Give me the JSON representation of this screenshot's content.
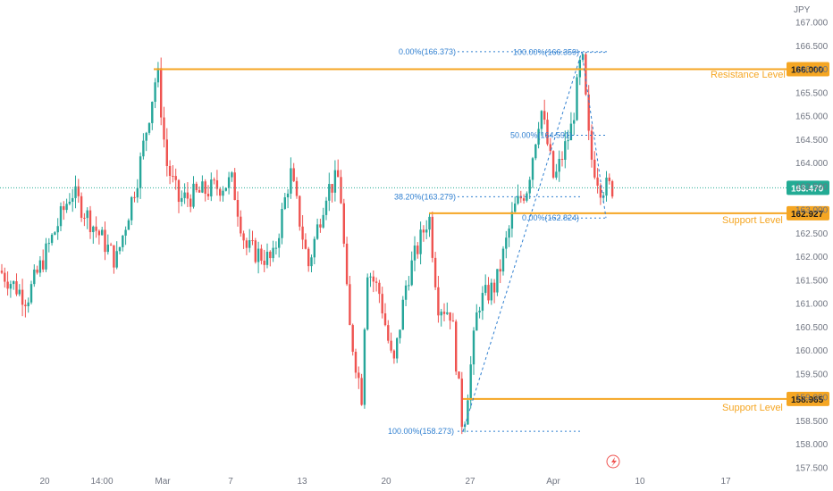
{
  "chart_data": {
    "type": "candlestick",
    "currency": "JPY",
    "ylim": [
      157.5,
      167.0
    ],
    "y_ticks": [
      "157.500",
      "158.000",
      "158.500",
      "159.000",
      "159.500",
      "160.000",
      "160.500",
      "161.000",
      "161.500",
      "162.000",
      "162.500",
      "163.000",
      "163.500",
      "164.000",
      "164.500",
      "165.000",
      "165.500",
      "166.000",
      "166.500",
      "167.000"
    ],
    "x_ticks": [
      "20",
      "14:00",
      "Mar",
      "7",
      "13",
      "20",
      "27",
      "Apr",
      "10",
      "17"
    ],
    "current_price": {
      "label": "163.470",
      "value": 163.47
    },
    "levels": [
      {
        "name": "Resistance Level",
        "value": 166.0,
        "label": "166.000"
      },
      {
        "name": "Support Level",
        "value": 162.927,
        "label": "162.927"
      },
      {
        "name": "Support Level",
        "value": 158.965,
        "label": "158.965"
      }
    ],
    "fib_up": [
      {
        "label": "0.00%(166.373)",
        "value": 166.373
      },
      {
        "label": "38.20%(163.279)",
        "value": 163.279
      },
      {
        "label": "100.00%(158.273)",
        "value": 158.273
      }
    ],
    "fib_down": [
      {
        "label": "100.00%(166.359)",
        "value": 166.359
      },
      {
        "label": "50.00%(164.591)",
        "value": 164.591
      },
      {
        "label": "0.00%(162.824)",
        "value": 162.824
      }
    ],
    "colors": {
      "up": "#26a69a",
      "down": "#ef5350",
      "level": "#f5a623",
      "fib": "#2f7fd0",
      "price": "#22ab94"
    },
    "key_points": [
      {
        "label": "peak",
        "value": 166.0
      },
      {
        "label": "low",
        "value": 158.273
      },
      {
        "label": "high",
        "value": 166.373
      },
      {
        "label": "last",
        "value": 163.47
      }
    ]
  },
  "flash_icon": "lightning-icon"
}
